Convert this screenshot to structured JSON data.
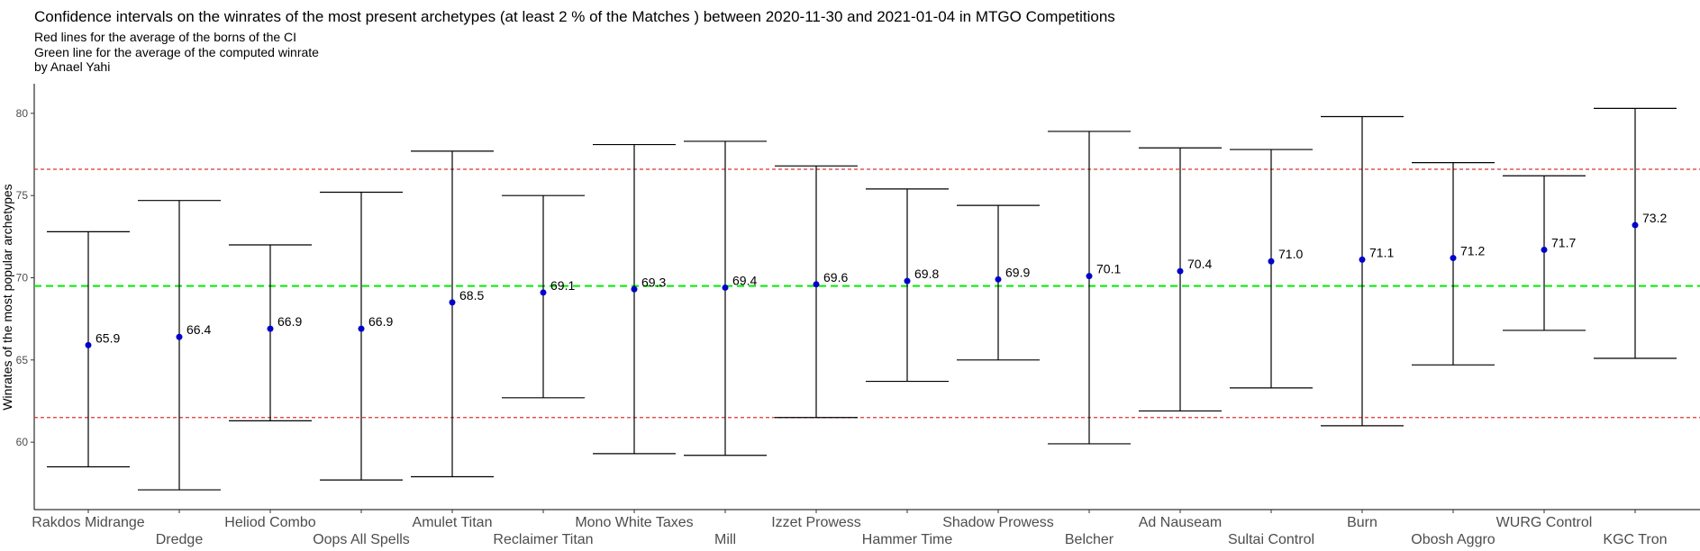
{
  "chart_data": {
    "type": "errorbar",
    "title": "Confidence intervals on the winrates of the most present archetypes (at least 2 % of the Matches ) between 2020-11-30 and 2021-01-04 in MTGO Competitions",
    "subtitle_lines": [
      "Red lines for the average of the borns of the CI",
      "Green line for the average of the computed winrate",
      "by Anael Yahi"
    ],
    "xlabel": "",
    "ylabel": "Winrates of the most popular archetypes",
    "ylim": [
      55.9,
      81.8
    ],
    "yticks": [
      60,
      65,
      70,
      75,
      80
    ],
    "grid": false,
    "categories": [
      "Rakdos Midrange",
      "Dredge",
      "Heliod Combo",
      "Oops All Spells",
      "Amulet Titan",
      "Reclaimer Titan",
      "Mono White Taxes",
      "Mill",
      "Izzet Prowess",
      "Hammer Time",
      "Shadow Prowess",
      "Belcher",
      "Ad Nauseam",
      "Sultai Control",
      "Burn",
      "Obosh Aggro",
      "WURG Control",
      "KGC Tron"
    ],
    "values": [
      65.9,
      66.4,
      66.9,
      66.9,
      68.5,
      69.1,
      69.3,
      69.4,
      69.6,
      69.8,
      69.9,
      70.1,
      70.4,
      71.0,
      71.1,
      71.2,
      71.7,
      73.2
    ],
    "value_labels": [
      "65.9",
      "66.4",
      "66.9",
      "66.9",
      "68.5",
      "69.1",
      "69.3",
      "69.4",
      "69.6",
      "69.8",
      "69.9",
      "70.1",
      "70.4",
      "71.0",
      "71.1",
      "71.2",
      "71.7",
      "73.2"
    ],
    "ci_lower": [
      58.5,
      57.1,
      61.3,
      57.7,
      57.9,
      62.7,
      59.3,
      59.2,
      61.5,
      63.7,
      65.0,
      59.9,
      61.9,
      63.3,
      61.0,
      64.7,
      66.8,
      65.1
    ],
    "ci_upper": [
      72.8,
      74.7,
      72.0,
      75.2,
      77.7,
      75.0,
      78.1,
      78.3,
      76.8,
      75.4,
      74.4,
      78.9,
      77.9,
      77.8,
      79.8,
      77.0,
      76.2,
      80.3
    ],
    "reference_lines": [
      {
        "y": 76.6,
        "color": "#dd3333",
        "style": "dotted"
      },
      {
        "y": 61.5,
        "color": "#dd3333",
        "style": "dotted"
      },
      {
        "y": 69.5,
        "color": "#00ee00",
        "style": "dashed"
      }
    ],
    "point_color": "#0000cc"
  }
}
